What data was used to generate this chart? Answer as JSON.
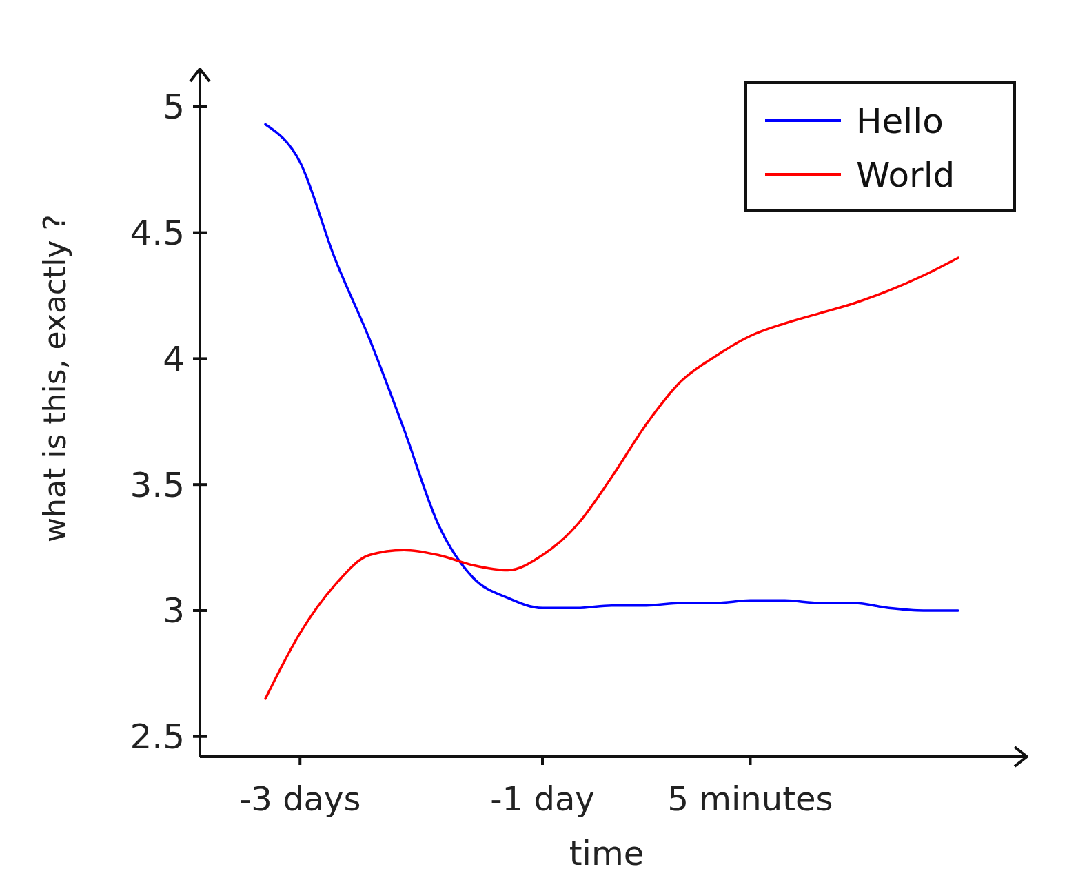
{
  "chart_data": {
    "type": "line",
    "xlabel": "time",
    "ylabel": "what is this, exactly ?",
    "categories": [
      null,
      "-3 days",
      null,
      null,
      null,
      null,
      null,
      null,
      "-1 day",
      null,
      null,
      null,
      null,
      null,
      "5 minutes",
      null,
      null,
      null,
      null,
      null,
      null
    ],
    "ylim": [
      2.42,
      5.15
    ],
    "yticks": [
      {
        "value": 2.5,
        "label": "2.5"
      },
      {
        "value": 3,
        "label": "3"
      },
      {
        "value": 3.5,
        "label": "3.5"
      },
      {
        "value": 4,
        "label": "4"
      },
      {
        "value": 4.5,
        "label": "4.5"
      },
      {
        "value": 5,
        "label": "5"
      }
    ],
    "grid": false,
    "legend": "top right",
    "marker": "none",
    "line_style": "solid",
    "series": [
      {
        "name": "Hello",
        "color": "#0000ff",
        "values": [
          4.93,
          4.78,
          4.4,
          4.08,
          3.72,
          3.34,
          3.13,
          3.05,
          3.01,
          3.01,
          3.02,
          3.02,
          3.03,
          3.03,
          3.04,
          3.04,
          3.03,
          3.03,
          3.01,
          3.0,
          3.0
        ]
      },
      {
        "name": "World",
        "color": "#ff0000",
        "values": [
          2.65,
          2.91,
          3.1,
          3.22,
          3.24,
          3.22,
          3.18,
          3.16,
          3.22,
          3.34,
          3.53,
          3.74,
          3.91,
          4.01,
          4.09,
          4.14,
          4.18,
          4.22,
          4.27,
          4.33,
          4.4
        ]
      }
    ]
  }
}
